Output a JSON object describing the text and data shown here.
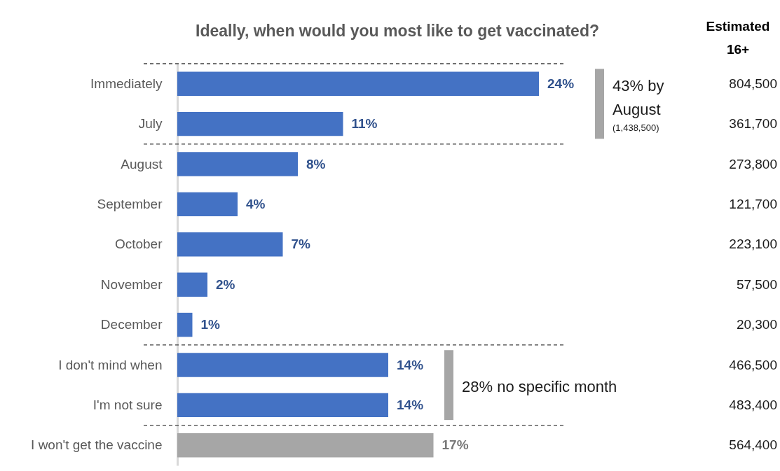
{
  "chart_data": [
    {
      "type": "bar",
      "orientation": "horizontal",
      "title": "Ideally, when would you most like to get vaccinated?",
      "categories": [
        "Immediately",
        "July",
        "August",
        "September",
        "October",
        "November",
        "December",
        "I don't mind when",
        "I'm not sure",
        "I won't get the vaccine"
      ],
      "values": [
        24,
        11,
        8,
        4,
        7,
        2,
        1,
        14,
        14,
        17
      ],
      "value_labels": [
        "24%",
        "11%",
        "8%",
        "4%",
        "7%",
        "2%",
        "1%",
        "14%",
        "14%",
        "17%"
      ],
      "colors": [
        "#4472c4",
        "#4472c4",
        "#4472c4",
        "#4472c4",
        "#4472c4",
        "#4472c4",
        "#4472c4",
        "#4472c4",
        "#4472c4",
        "#a6a6a6"
      ],
      "tick_labels": "y",
      "annotations": [
        "43% by August",
        "(1,438,500)",
        "28% no specific month"
      ]
    },
    {
      "type": "other",
      "title": "Estimated 16+",
      "annotations": [
        "804,500",
        "361,700",
        "273,800",
        "121,700",
        "223,100",
        "57,500",
        "20,300",
        "466,500",
        "483,400",
        "564,400"
      ]
    }
  ]
}
